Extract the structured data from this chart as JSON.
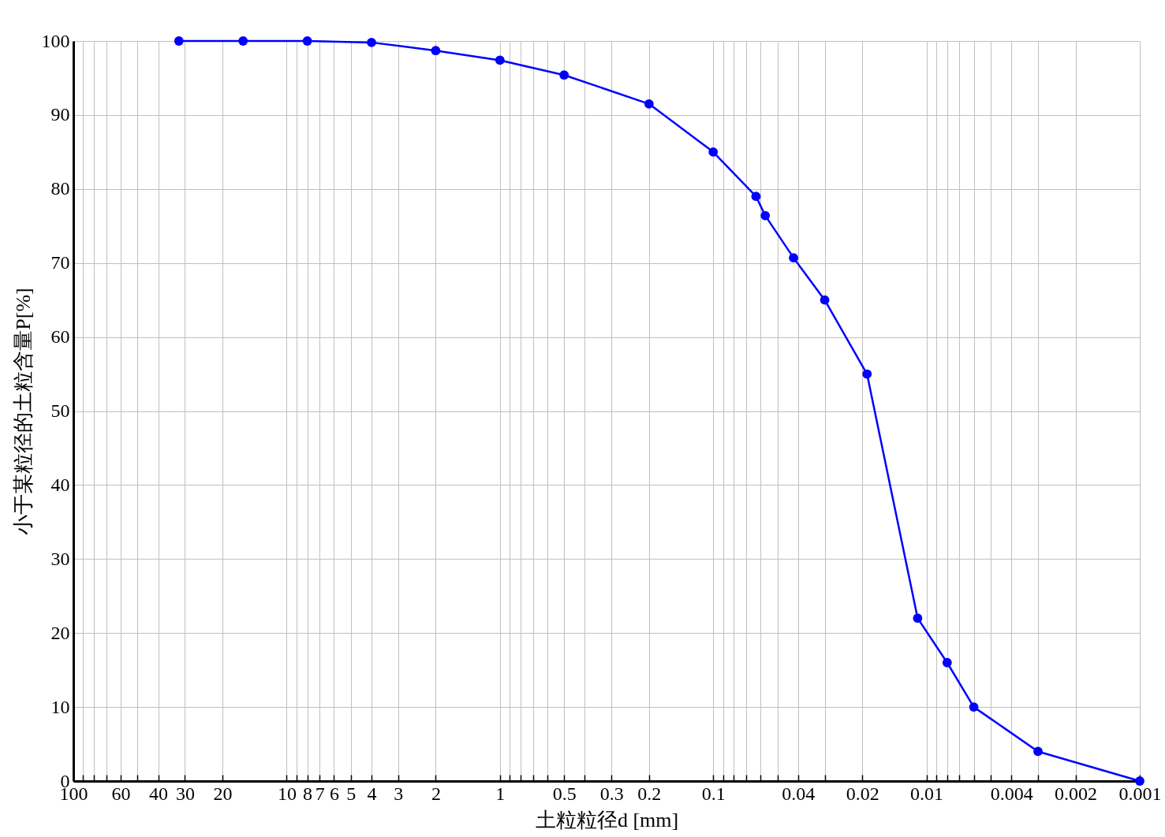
{
  "chart_data": {
    "type": "line",
    "xlabel": "土粒粒径d [mm]",
    "ylabel": "小于某粒径的土粒含量P[%]",
    "x": [
      32,
      16,
      8,
      4,
      2,
      1,
      0.5,
      0.2,
      0.1,
      0.063,
      0.057,
      0.042,
      0.03,
      0.019,
      0.011,
      0.008,
      0.006,
      0.003,
      0.001
    ],
    "series": [
      {
        "color": "#0000ff",
        "values": [
          100,
          100,
          100,
          99.8,
          98.7,
          97.4,
          95.4,
          91.5,
          85,
          79,
          76.4,
          70.7,
          65,
          55,
          22,
          16,
          10,
          4,
          0
        ]
      }
    ],
    "xlim": [
      100,
      0.001
    ],
    "xticks": [
      100,
      {
        "value": 90,
        "label": null
      },
      {
        "value": 80,
        "label": null
      },
      {
        "value": 70,
        "label": null
      },
      60,
      {
        "value": 50,
        "label": null
      },
      40,
      30,
      20,
      10,
      {
        "value": 9,
        "label": null
      },
      8,
      7,
      6,
      5,
      4,
      3,
      2,
      1,
      {
        "value": 0.9,
        "label": null
      },
      {
        "value": 0.8,
        "label": null
      },
      {
        "value": 0.7,
        "label": null
      },
      {
        "value": 0.6,
        "label": null
      },
      0.5,
      {
        "value": 0.4,
        "label": null
      },
      0.3,
      0.2,
      0.1,
      {
        "value": 0.09,
        "label": null
      },
      {
        "value": 0.08,
        "label": null
      },
      {
        "value": 0.07,
        "label": null
      },
      {
        "value": 0.06,
        "label": null
      },
      {
        "value": 0.05,
        "label": null
      },
      0.04,
      {
        "value": 0.03,
        "label": null
      },
      0.02,
      0.01,
      {
        "value": 0.009,
        "label": null
      },
      {
        "value": 0.008,
        "label": null
      },
      {
        "value": 0.007,
        "label": null
      },
      {
        "value": 0.006,
        "label": null
      },
      {
        "value": 0.005,
        "label": null
      },
      0.004,
      {
        "value": 0.003,
        "label": null
      },
      0.002,
      0.001
    ],
    "ylim": [
      0,
      100
    ],
    "yticks": [
      0,
      10,
      20,
      30,
      40,
      50,
      60,
      70,
      80,
      90,
      100
    ],
    "log": "x",
    "grid": true,
    "legend": false,
    "marker": "circle",
    "line_style": "solid"
  }
}
